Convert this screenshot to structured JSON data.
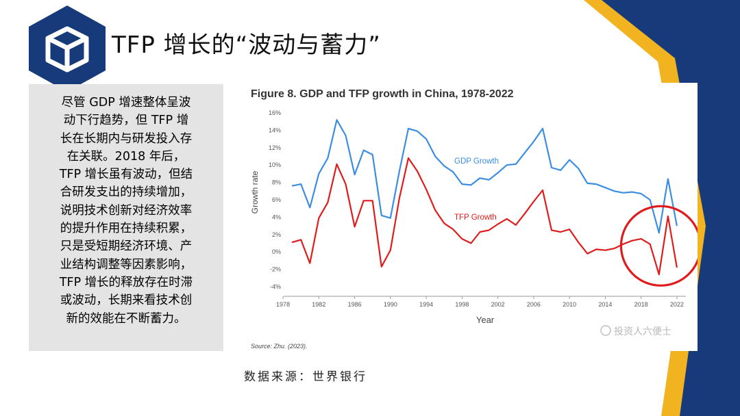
{
  "slide": {
    "title": "TFP 增长的“波动与蓄力”",
    "description": "尽管 GDP 增速整体呈波动下行趋势，但 TFP 增长在长期内与研发投入存在关联。2018 年后，TFP 增长虽有波动，但结合研发支出的持续增加，说明技术创新对经济效率的提升作用在持续积累，只是受短期经济环境、产业结构调整等因素影响，TFP 增长的释放存在时滞或波动，长期来看技术创新的效能在不断蓄力。",
    "description_lines": [
      "尽管 GDP 增速整体呈波",
      "动下行趋势，但 TFP 增",
      "长在长期内与研发投入存",
      "在关联。2018 年后，",
      "TFP 增长虽有波动，但结",
      "合研发支出的持续增加，",
      "说明技术创新对经济效率",
      "的提升作用在持续积累，",
      "只是受短期经济环境、产",
      "业结构调整等因素影响，",
      "TFP 增长的释放存在时滞",
      "或波动，长期来看技术创",
      "新的效能在不断蓄力。"
    ],
    "data_source": "数据来源：世界银行",
    "watermark": "投资人六便士",
    "colors": {
      "navy": "#173a7a",
      "gold": "#f2b320",
      "gdp": "#3a8de0",
      "tfp": "#e01b1b",
      "circle": "#e01b1b"
    }
  },
  "chart_data": {
    "type": "line",
    "title": "Figure 8. GDP and TFP growth in China, 1978-2022",
    "xlabel": "Year",
    "ylabel": "Growth rate",
    "source": "Source: Zhu. (2023).",
    "xlim": [
      1977,
      2023
    ],
    "ylim": [
      -4,
      16
    ],
    "x_ticks": [
      1978,
      1982,
      1986,
      1990,
      1994,
      1998,
      2002,
      2006,
      2010,
      2014,
      2018,
      2022
    ],
    "y_ticks": [
      -4,
      -2,
      0,
      2,
      4,
      6,
      8,
      10,
      12,
      14,
      16
    ],
    "y_tick_labels": [
      "-4%",
      "-2%",
      "0%",
      "2%",
      "4%",
      "6%",
      "8%",
      "10%",
      "12%",
      "14%",
      "16%"
    ],
    "series": [
      {
        "name": "GDP Growth",
        "label": "GDP Growth",
        "color": "#3a8de0",
        "x": [
          1979,
          1980,
          1981,
          1982,
          1983,
          1984,
          1985,
          1986,
          1987,
          1988,
          1989,
          1990,
          1991,
          1992,
          1993,
          1994,
          1995,
          1996,
          1997,
          1998,
          1999,
          2000,
          2001,
          2002,
          2003,
          2004,
          2005,
          2006,
          2007,
          2008,
          2009,
          2010,
          2011,
          2012,
          2013,
          2014,
          2015,
          2016,
          2017,
          2018,
          2019,
          2020,
          2021,
          2022
        ],
        "values": [
          7.6,
          7.8,
          5.1,
          9.0,
          10.8,
          15.2,
          13.4,
          8.9,
          11.7,
          11.2,
          4.2,
          3.9,
          9.3,
          14.2,
          13.9,
          13.0,
          11.0,
          9.9,
          9.2,
          7.8,
          7.7,
          8.5,
          8.3,
          9.1,
          10.0,
          10.1,
          11.4,
          12.7,
          14.2,
          9.7,
          9.4,
          10.6,
          9.6,
          7.9,
          7.8,
          7.4,
          7.0,
          6.8,
          6.9,
          6.7,
          6.0,
          2.2,
          8.4,
          3.0
        ]
      },
      {
        "name": "TFP Growth",
        "label": "TFP Growth",
        "color": "#e01b1b",
        "x": [
          1979,
          1980,
          1981,
          1982,
          1983,
          1984,
          1985,
          1986,
          1987,
          1988,
          1989,
          1990,
          1991,
          1992,
          1993,
          1994,
          1995,
          1996,
          1997,
          1998,
          1999,
          2000,
          2001,
          2002,
          2003,
          2004,
          2005,
          2006,
          2007,
          2008,
          2009,
          2010,
          2011,
          2012,
          2013,
          2014,
          2015,
          2016,
          2017,
          2018,
          2019,
          2020,
          2021,
          2022
        ],
        "values": [
          1.1,
          1.4,
          -1.3,
          3.9,
          5.7,
          10.1,
          7.8,
          2.9,
          5.9,
          5.9,
          -1.7,
          0.2,
          6.2,
          10.8,
          9.3,
          7.2,
          4.8,
          3.3,
          2.6,
          1.5,
          1.0,
          2.3,
          2.5,
          3.2,
          3.8,
          3.1,
          4.4,
          5.8,
          7.1,
          2.5,
          2.3,
          2.6,
          1.1,
          -0.2,
          0.3,
          0.2,
          0.4,
          0.9,
          1.3,
          1.5,
          0.9,
          -2.6,
          4.1,
          -1.8
        ]
      }
    ],
    "annotation": "red circle highlighting 2017-2022"
  }
}
